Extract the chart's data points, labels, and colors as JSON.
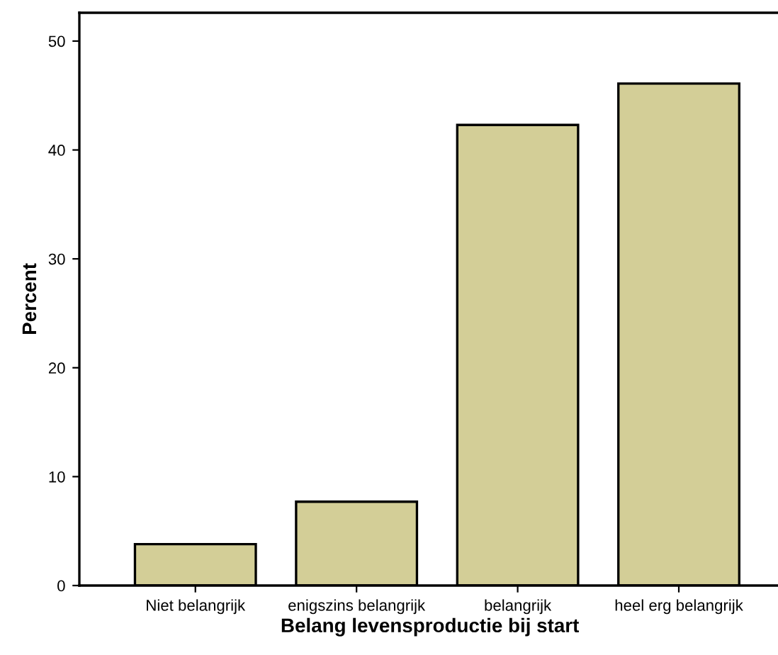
{
  "chart_data": {
    "type": "bar",
    "xlabel": "Belang levensproductie bij start",
    "ylabel": "Percent",
    "categories": [
      "Niet belangrijk",
      "enigszins belangrijk",
      "belangrijk",
      "heel erg belangrijk"
    ],
    "values": [
      3.8,
      7.7,
      42.3,
      46.1
    ],
    "color": "#d3ce97",
    "ylim": [
      0,
      52.6
    ],
    "yticks": [
      0,
      10,
      20,
      30,
      40,
      50
    ],
    "grid": false,
    "legend": false
  }
}
